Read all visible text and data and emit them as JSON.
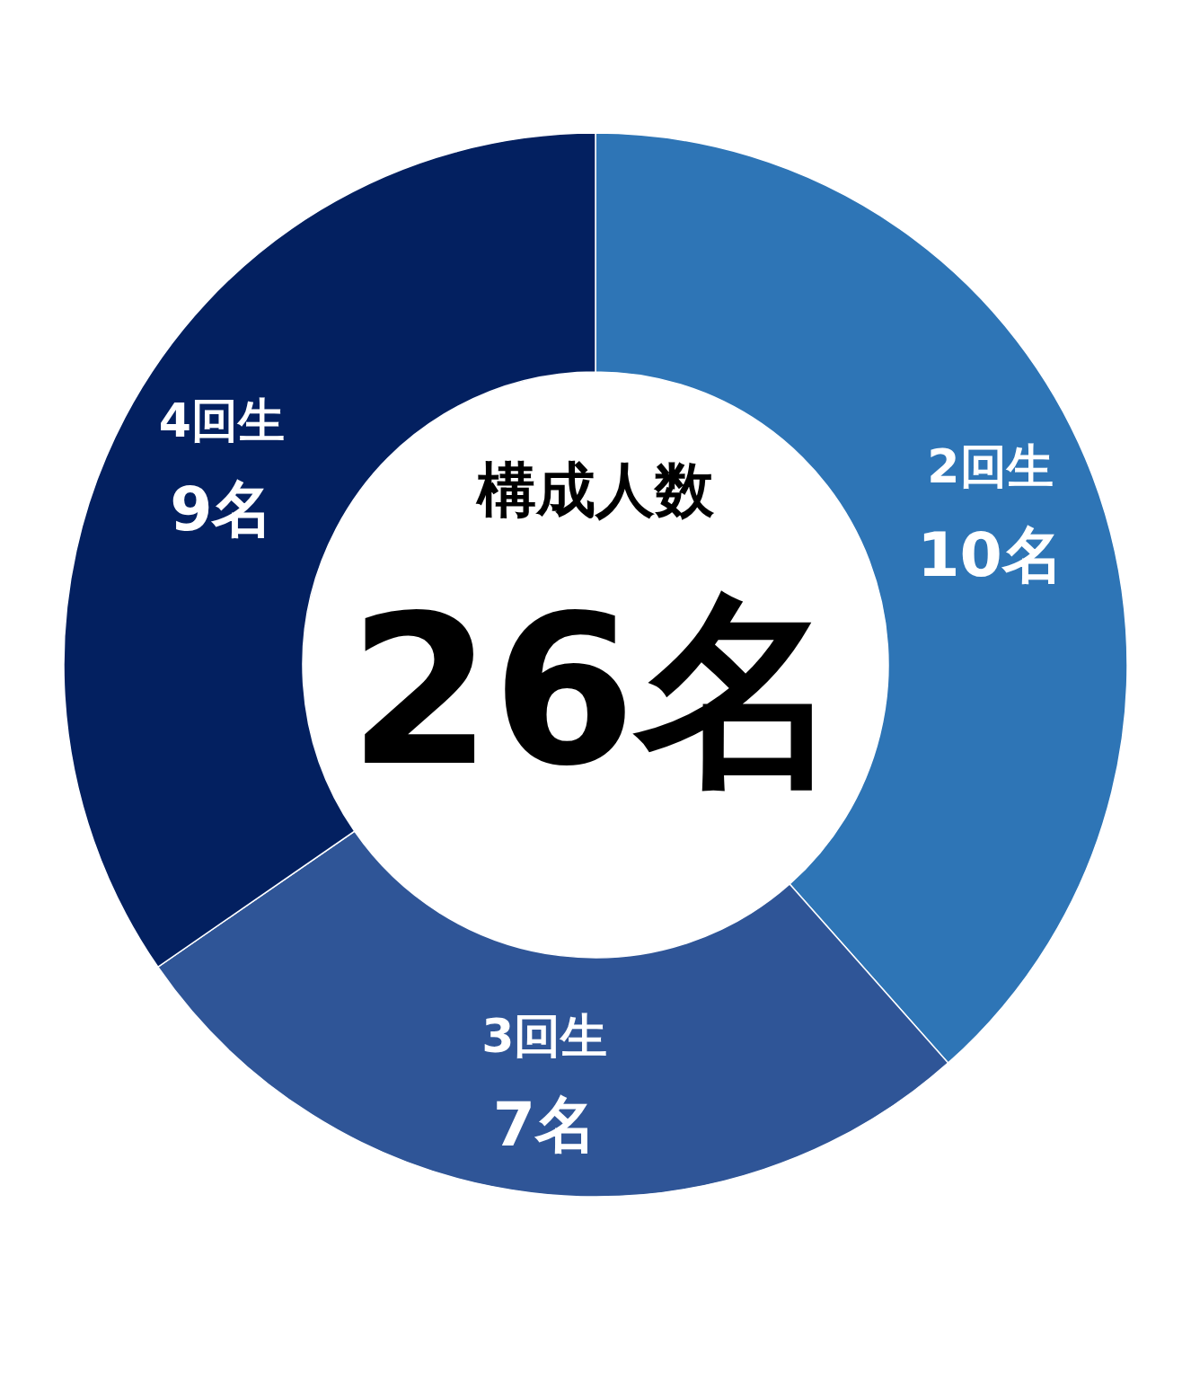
{
  "chart_data": {
    "type": "donut",
    "title": "構成人数",
    "categories": [
      "2回生",
      "3回生",
      "4回生"
    ],
    "values": [
      10,
      7,
      9
    ],
    "value_labels": [
      "10名",
      "7名",
      "9名"
    ],
    "colors": [
      "#2e75b6",
      "#2f5597",
      "#032060"
    ],
    "annotations": [
      "26名"
    ]
  }
}
